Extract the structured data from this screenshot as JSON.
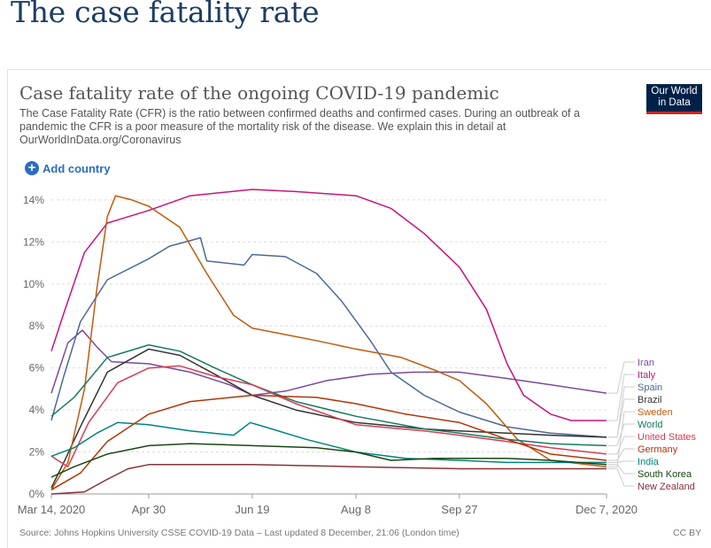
{
  "page": {
    "title": "The case fatality rate"
  },
  "chart_header": {
    "title": "Case fatality rate of the ongoing COVID-19 pandemic",
    "subtitle": "The Case Fatality Rate (CFR) is the ratio between confirmed deaths and confirmed cases. During an outbreak of a pandemic the CFR is a poor measure of the mortality risk of the disease. We explain this in detail at OurWorldInData.org/Coronavirus",
    "logo_line1": "Our World",
    "logo_line2": "in Data",
    "add_country_label": "Add country"
  },
  "footer": {
    "source": "Source: Johns Hopkins University CSSE COVID-19 Data – Last updated 8 December, 21:06 (London time)",
    "license": "CC BY"
  },
  "chart_data": {
    "type": "line",
    "x_type": "date",
    "x_range": [
      "2020-03-14",
      "2020-12-07"
    ],
    "x_ticks": [
      {
        "date": "2020-03-14",
        "label": "Mar 14, 2020"
      },
      {
        "date": "2020-04-30",
        "label": "Apr 30"
      },
      {
        "date": "2020-06-19",
        "label": "Jun 19"
      },
      {
        "date": "2020-08-08",
        "label": "Aug 8"
      },
      {
        "date": "2020-09-27",
        "label": "Sep 27"
      },
      {
        "date": "2020-12-07",
        "label": "Dec 7, 2020"
      }
    ],
    "ylim": [
      0,
      14.5
    ],
    "y_ticks": [
      0,
      2,
      4,
      6,
      8,
      10,
      12,
      14
    ],
    "y_tick_suffix": "%",
    "grid": true,
    "legend_position": "right",
    "series": [
      {
        "name": "Iran",
        "color": "#7a4b9c",
        "points": [
          [
            "2020-03-14",
            4.8
          ],
          [
            "2020-03-22",
            7.2
          ],
          [
            "2020-03-29",
            7.8
          ],
          [
            "2020-04-05",
            7.0
          ],
          [
            "2020-04-12",
            6.3
          ],
          [
            "2020-04-30",
            6.2
          ],
          [
            "2020-05-20",
            5.8
          ],
          [
            "2020-06-08",
            5.2
          ],
          [
            "2020-06-19",
            4.7
          ],
          [
            "2020-07-05",
            4.9
          ],
          [
            "2020-07-25",
            5.4
          ],
          [
            "2020-08-15",
            5.7
          ],
          [
            "2020-09-05",
            5.8
          ],
          [
            "2020-09-27",
            5.8
          ],
          [
            "2020-10-20",
            5.5
          ],
          [
            "2020-11-10",
            5.2
          ],
          [
            "2020-12-07",
            4.8
          ]
        ]
      },
      {
        "name": "Italy",
        "color": "#c8147a",
        "points": [
          [
            "2020-03-14",
            6.8
          ],
          [
            "2020-03-20",
            8.6
          ],
          [
            "2020-03-30",
            11.5
          ],
          [
            "2020-04-10",
            12.9
          ],
          [
            "2020-04-30",
            13.5
          ],
          [
            "2020-05-20",
            14.2
          ],
          [
            "2020-06-19",
            14.5
          ],
          [
            "2020-07-10",
            14.4
          ],
          [
            "2020-08-08",
            14.2
          ],
          [
            "2020-08-25",
            13.6
          ],
          [
            "2020-09-10",
            12.4
          ],
          [
            "2020-09-27",
            10.8
          ],
          [
            "2020-10-10",
            8.8
          ],
          [
            "2020-10-20",
            6.2
          ],
          [
            "2020-10-28",
            4.7
          ],
          [
            "2020-11-10",
            3.8
          ],
          [
            "2020-11-20",
            3.5
          ],
          [
            "2020-12-07",
            3.5
          ]
        ]
      },
      {
        "name": "Spain",
        "color": "#4b6a96",
        "points": [
          [
            "2020-03-14",
            3.5
          ],
          [
            "2020-03-20",
            5.6
          ],
          [
            "2020-03-28",
            8.2
          ],
          [
            "2020-04-10",
            10.2
          ],
          [
            "2020-04-30",
            11.2
          ],
          [
            "2020-05-10",
            11.8
          ],
          [
            "2020-05-25",
            12.2
          ],
          [
            "2020-05-28",
            11.1
          ],
          [
            "2020-06-15",
            10.9
          ],
          [
            "2020-06-19",
            11.4
          ],
          [
            "2020-07-05",
            11.3
          ],
          [
            "2020-07-20",
            10.5
          ],
          [
            "2020-08-01",
            9.2
          ],
          [
            "2020-08-15",
            7.3
          ],
          [
            "2020-08-25",
            5.8
          ],
          [
            "2020-09-10",
            4.7
          ],
          [
            "2020-09-27",
            3.9
          ],
          [
            "2020-10-20",
            3.2
          ],
          [
            "2020-11-10",
            2.9
          ],
          [
            "2020-12-07",
            2.7
          ]
        ]
      },
      {
        "name": "Brazil",
        "color": "#333333",
        "points": [
          [
            "2020-03-14",
            0.3
          ],
          [
            "2020-03-20",
            1.5
          ],
          [
            "2020-03-28",
            3.2
          ],
          [
            "2020-04-10",
            5.8
          ],
          [
            "2020-04-30",
            6.9
          ],
          [
            "2020-05-15",
            6.6
          ],
          [
            "2020-06-01",
            5.7
          ],
          [
            "2020-06-19",
            4.7
          ],
          [
            "2020-07-10",
            4.0
          ],
          [
            "2020-08-08",
            3.4
          ],
          [
            "2020-09-10",
            3.1
          ],
          [
            "2020-09-27",
            3.0
          ],
          [
            "2020-10-20",
            2.9
          ],
          [
            "2020-11-10",
            2.8
          ],
          [
            "2020-12-07",
            2.7
          ]
        ]
      },
      {
        "name": "Sweden",
        "color": "#c15b0e",
        "points": [
          [
            "2020-03-14",
            0.2
          ],
          [
            "2020-03-22",
            1.5
          ],
          [
            "2020-03-30",
            5.0
          ],
          [
            "2020-04-05",
            9.8
          ],
          [
            "2020-04-10",
            13.2
          ],
          [
            "2020-04-14",
            14.2
          ],
          [
            "2020-04-22",
            14.0
          ],
          [
            "2020-04-30",
            13.7
          ],
          [
            "2020-05-15",
            12.7
          ],
          [
            "2020-05-28",
            10.5
          ],
          [
            "2020-06-10",
            8.5
          ],
          [
            "2020-06-19",
            7.9
          ],
          [
            "2020-07-20",
            7.3
          ],
          [
            "2020-08-08",
            6.9
          ],
          [
            "2020-08-30",
            6.5
          ],
          [
            "2020-09-15",
            5.9
          ],
          [
            "2020-09-27",
            5.4
          ],
          [
            "2020-10-10",
            4.3
          ],
          [
            "2020-10-25",
            2.6
          ],
          [
            "2020-11-10",
            1.6
          ],
          [
            "2020-12-07",
            1.3
          ]
        ]
      },
      {
        "name": "World",
        "color": "#167a5e",
        "points": [
          [
            "2020-03-14",
            3.7
          ],
          [
            "2020-03-25",
            4.6
          ],
          [
            "2020-04-10",
            6.5
          ],
          [
            "2020-04-30",
            7.1
          ],
          [
            "2020-05-15",
            6.8
          ],
          [
            "2020-06-01",
            6.0
          ],
          [
            "2020-06-19",
            5.2
          ],
          [
            "2020-07-10",
            4.4
          ],
          [
            "2020-08-08",
            3.7
          ],
          [
            "2020-09-10",
            3.1
          ],
          [
            "2020-09-27",
            2.9
          ],
          [
            "2020-10-20",
            2.6
          ],
          [
            "2020-11-10",
            2.4
          ],
          [
            "2020-12-07",
            2.3
          ]
        ]
      },
      {
        "name": "United States",
        "color": "#d73c50",
        "points": [
          [
            "2020-03-14",
            1.8
          ],
          [
            "2020-03-22",
            1.3
          ],
          [
            "2020-04-01",
            3.4
          ],
          [
            "2020-04-15",
            5.3
          ],
          [
            "2020-04-30",
            6.0
          ],
          [
            "2020-05-15",
            6.1
          ],
          [
            "2020-06-01",
            5.6
          ],
          [
            "2020-06-19",
            5.2
          ],
          [
            "2020-07-10",
            4.3
          ],
          [
            "2020-08-08",
            3.3
          ],
          [
            "2020-09-10",
            3.0
          ],
          [
            "2020-09-27",
            2.8
          ],
          [
            "2020-10-20",
            2.5
          ],
          [
            "2020-11-10",
            2.2
          ],
          [
            "2020-12-07",
            1.9
          ]
        ]
      },
      {
        "name": "Germany",
        "color": "#b13507",
        "points": [
          [
            "2020-03-14",
            0.2
          ],
          [
            "2020-03-28",
            1.0
          ],
          [
            "2020-04-10",
            2.5
          ],
          [
            "2020-04-30",
            3.8
          ],
          [
            "2020-05-20",
            4.4
          ],
          [
            "2020-06-19",
            4.7
          ],
          [
            "2020-07-20",
            4.6
          ],
          [
            "2020-08-08",
            4.3
          ],
          [
            "2020-09-01",
            3.8
          ],
          [
            "2020-09-27",
            3.4
          ],
          [
            "2020-10-20",
            2.6
          ],
          [
            "2020-11-10",
            1.9
          ],
          [
            "2020-12-07",
            1.6
          ]
        ]
      },
      {
        "name": "India",
        "color": "#00847e",
        "points": [
          [
            "2020-03-14",
            1.8
          ],
          [
            "2020-03-25",
            2.2
          ],
          [
            "2020-04-05",
            2.9
          ],
          [
            "2020-04-15",
            3.4
          ],
          [
            "2020-04-30",
            3.3
          ],
          [
            "2020-05-20",
            3.0
          ],
          [
            "2020-06-10",
            2.8
          ],
          [
            "2020-06-18",
            3.4
          ],
          [
            "2020-06-25",
            3.2
          ],
          [
            "2020-07-15",
            2.6
          ],
          [
            "2020-08-08",
            2.0
          ],
          [
            "2020-09-01",
            1.7
          ],
          [
            "2020-09-27",
            1.6
          ],
          [
            "2020-10-20",
            1.5
          ],
          [
            "2020-11-10",
            1.5
          ],
          [
            "2020-12-07",
            1.5
          ]
        ]
      },
      {
        "name": "South Korea",
        "color": "#18470f",
        "points": [
          [
            "2020-03-14",
            0.8
          ],
          [
            "2020-03-25",
            1.3
          ],
          [
            "2020-04-10",
            1.9
          ],
          [
            "2020-04-30",
            2.3
          ],
          [
            "2020-05-20",
            2.4
          ],
          [
            "2020-06-19",
            2.3
          ],
          [
            "2020-07-20",
            2.2
          ],
          [
            "2020-08-08",
            2.0
          ],
          [
            "2020-08-25",
            1.6
          ],
          [
            "2020-09-15",
            1.7
          ],
          [
            "2020-09-27",
            1.7
          ],
          [
            "2020-10-20",
            1.7
          ],
          [
            "2020-11-10",
            1.6
          ],
          [
            "2020-12-07",
            1.4
          ]
        ]
      },
      {
        "name": "New Zealand",
        "color": "#883039",
        "points": [
          [
            "2020-03-14",
            0.0
          ],
          [
            "2020-03-30",
            0.1
          ],
          [
            "2020-04-10",
            0.7
          ],
          [
            "2020-04-20",
            1.2
          ],
          [
            "2020-04-30",
            1.4
          ],
          [
            "2020-05-20",
            1.4
          ],
          [
            "2020-06-19",
            1.4
          ],
          [
            "2020-08-08",
            1.3
          ],
          [
            "2020-09-27",
            1.2
          ],
          [
            "2020-11-10",
            1.2
          ],
          [
            "2020-12-07",
            1.2
          ]
        ]
      }
    ],
    "legend_order": [
      "Iran",
      "Italy",
      "Spain",
      "Brazil",
      "Sweden",
      "World",
      "United States",
      "Germany",
      "India",
      "South Korea",
      "New Zealand"
    ]
  }
}
